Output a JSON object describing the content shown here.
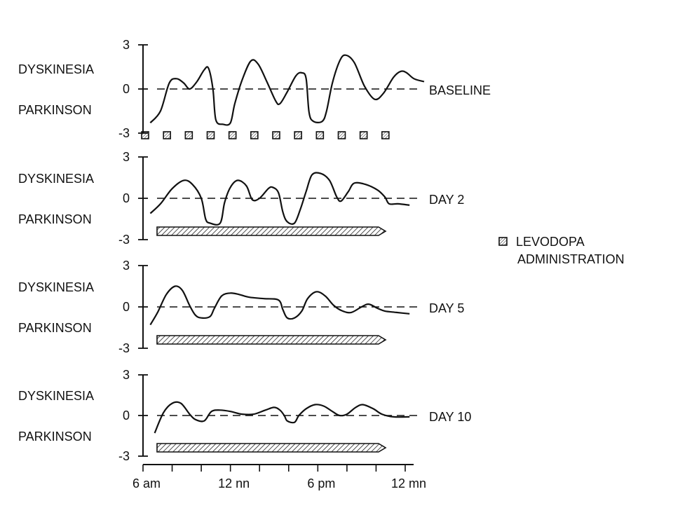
{
  "chart_data": {
    "type": "line",
    "x_unit": "hours after 6 am",
    "x_range": [
      0,
      18
    ],
    "y_range": [
      -3,
      3
    ],
    "y_ticks": [
      "3",
      "0",
      "-3"
    ],
    "x_tick_labels": [
      {
        "x": 0,
        "label": "6 am"
      },
      {
        "x": 6,
        "label": "12 nn"
      },
      {
        "x": 12,
        "label": "6 pm"
      },
      {
        "x": 18,
        "label": "12 mn"
      }
    ],
    "upper_label": "DYSKINESIA",
    "lower_label": "PARKINSON",
    "legend": {
      "line1": "LEVODOPA",
      "line2": "ADMINISTRATION"
    },
    "panels": [
      {
        "label": "BASELINE",
        "administration": "intermittent",
        "dose_times": [
          0,
          1.5,
          3,
          4.5,
          6,
          7.5,
          9,
          10.5,
          12,
          13.5,
          15,
          16.5
        ],
        "points": [
          [
            0.5,
            -2.3
          ],
          [
            1.2,
            -1.5
          ],
          [
            1.8,
            0.4
          ],
          [
            2.3,
            0.7
          ],
          [
            2.8,
            0.4
          ],
          [
            3.2,
            0.0
          ],
          [
            3.7,
            0.5
          ],
          [
            4.2,
            1.3
          ],
          [
            4.5,
            1.4
          ],
          [
            4.8,
            0
          ],
          [
            5.0,
            -2.1
          ],
          [
            5.5,
            -2.4
          ],
          [
            6.0,
            -2.3
          ],
          [
            6.3,
            -1.0
          ],
          [
            6.8,
            0.6
          ],
          [
            7.4,
            1.9
          ],
          [
            7.9,
            1.7
          ],
          [
            8.5,
            0.5
          ],
          [
            9.1,
            -0.8
          ],
          [
            9.4,
            -1.0
          ],
          [
            9.9,
            -0.2
          ],
          [
            10.5,
            0.9
          ],
          [
            10.9,
            1.1
          ],
          [
            11.2,
            0.7
          ],
          [
            11.4,
            -1.6
          ],
          [
            11.7,
            -2.2
          ],
          [
            12.3,
            -2.2
          ],
          [
            12.6,
            -1.5
          ],
          [
            13.0,
            0.4
          ],
          [
            13.5,
            1.9
          ],
          [
            13.9,
            2.3
          ],
          [
            14.5,
            1.8
          ],
          [
            15.2,
            0.2
          ],
          [
            15.9,
            -0.7
          ],
          [
            16.5,
            -0.3
          ],
          [
            17.2,
            0.8
          ],
          [
            17.7,
            1.2
          ],
          [
            18.1,
            1.1
          ],
          [
            18.6,
            0.7
          ],
          [
            19.3,
            0.5
          ]
        ]
      },
      {
        "label": "DAY 2",
        "administration": "continuous",
        "points": [
          [
            0.5,
            -1.1
          ],
          [
            1.2,
            -0.4
          ],
          [
            2.0,
            0.7
          ],
          [
            2.8,
            1.3
          ],
          [
            3.4,
            1.0
          ],
          [
            4.0,
            0.0
          ],
          [
            4.3,
            -1.5
          ],
          [
            4.6,
            -1.8
          ],
          [
            5.3,
            -1.8
          ],
          [
            5.6,
            -0.3
          ],
          [
            6.0,
            0.8
          ],
          [
            6.5,
            1.3
          ],
          [
            7.1,
            0.9
          ],
          [
            7.5,
            -0.1
          ],
          [
            8.0,
            0.0
          ],
          [
            8.6,
            0.7
          ],
          [
            8.9,
            0.8
          ],
          [
            9.3,
            0.4
          ],
          [
            9.6,
            -1.0
          ],
          [
            9.9,
            -1.7
          ],
          [
            10.4,
            -1.8
          ],
          [
            10.8,
            -0.8
          ],
          [
            11.2,
            0.5
          ],
          [
            11.6,
            1.7
          ],
          [
            12.2,
            1.8
          ],
          [
            12.8,
            1.3
          ],
          [
            13.3,
            0.1
          ],
          [
            13.6,
            -0.2
          ],
          [
            14.1,
            0.5
          ],
          [
            14.5,
            1.1
          ],
          [
            15.3,
            1.0
          ],
          [
            16.1,
            0.6
          ],
          [
            16.6,
            0.1
          ],
          [
            16.9,
            -0.4
          ],
          [
            17.5,
            -0.4
          ],
          [
            18.3,
            -0.5
          ]
        ]
      },
      {
        "label": "DAY 5",
        "administration": "continuous",
        "points": [
          [
            0.5,
            -1.3
          ],
          [
            1.0,
            -0.4
          ],
          [
            1.6,
            0.9
          ],
          [
            2.2,
            1.5
          ],
          [
            2.7,
            1.2
          ],
          [
            3.2,
            0.1
          ],
          [
            3.6,
            -0.6
          ],
          [
            4.0,
            -0.8
          ],
          [
            4.6,
            -0.7
          ],
          [
            4.9,
            -0.1
          ],
          [
            5.4,
            0.8
          ],
          [
            6.0,
            1.0
          ],
          [
            6.6,
            0.9
          ],
          [
            7.3,
            0.7
          ],
          [
            8.3,
            0.6
          ],
          [
            9.3,
            0.5
          ],
          [
            9.6,
            -0.2
          ],
          [
            9.9,
            -0.8
          ],
          [
            10.4,
            -0.8
          ],
          [
            10.9,
            -0.3
          ],
          [
            11.3,
            0.6
          ],
          [
            11.9,
            1.1
          ],
          [
            12.5,
            0.8
          ],
          [
            13.1,
            0.1
          ],
          [
            13.7,
            -0.3
          ],
          [
            14.3,
            -0.4
          ],
          [
            15.0,
            0.0
          ],
          [
            15.5,
            0.2
          ],
          [
            16.1,
            -0.1
          ],
          [
            16.6,
            -0.3
          ],
          [
            17.4,
            -0.4
          ],
          [
            18.3,
            -0.5
          ]
        ]
      },
      {
        "label": "DAY 10",
        "administration": "continuous",
        "points": [
          [
            0.8,
            -1.3
          ],
          [
            1.4,
            0.2
          ],
          [
            2.0,
            0.9
          ],
          [
            2.6,
            0.9
          ],
          [
            3.2,
            0.1
          ],
          [
            3.6,
            -0.3
          ],
          [
            4.2,
            -0.4
          ],
          [
            4.7,
            0.3
          ],
          [
            5.3,
            0.4
          ],
          [
            6.0,
            0.3
          ],
          [
            6.8,
            0.1
          ],
          [
            7.6,
            0.1
          ],
          [
            8.4,
            0.4
          ],
          [
            9.0,
            0.6
          ],
          [
            9.4,
            0.4
          ],
          [
            9.7,
            0.0
          ],
          [
            9.9,
            -0.4
          ],
          [
            10.4,
            -0.5
          ],
          [
            10.7,
            0.0
          ],
          [
            11.2,
            0.5
          ],
          [
            11.8,
            0.8
          ],
          [
            12.4,
            0.7
          ],
          [
            13.0,
            0.3
          ],
          [
            13.5,
            0.0
          ],
          [
            14.0,
            0.1
          ],
          [
            14.6,
            0.6
          ],
          [
            15.1,
            0.8
          ],
          [
            15.8,
            0.5
          ],
          [
            16.4,
            0.1
          ],
          [
            17.2,
            -0.1
          ],
          [
            18.3,
            -0.1
          ]
        ]
      }
    ]
  }
}
